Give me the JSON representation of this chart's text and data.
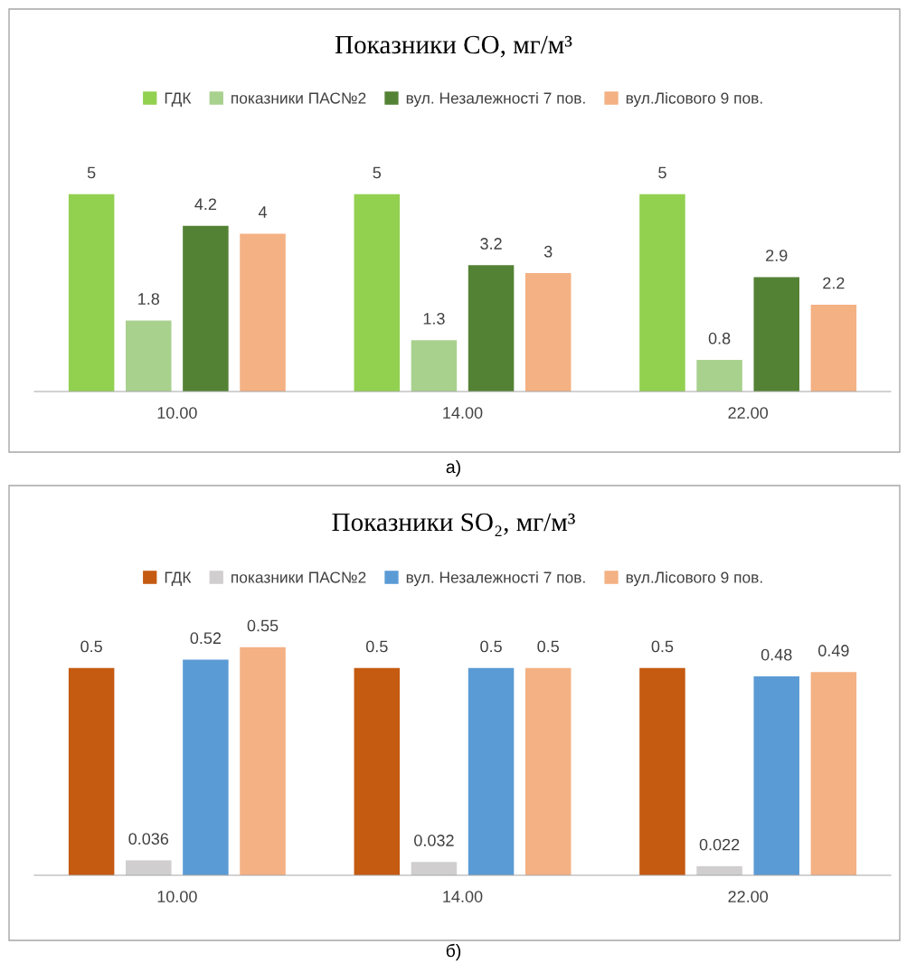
{
  "chart_data": [
    {
      "type": "bar",
      "title": "Показники CO, мг/м³",
      "categories": [
        "10.00",
        "14.00",
        "22.00"
      ],
      "legend": "top",
      "data_labels": true,
      "annotations": [
        "а)"
      ],
      "series": [
        {
          "name": "ГДК",
          "color": "#92d050",
          "values": [
            5,
            5,
            5
          ]
        },
        {
          "name": "показники ПАС№2",
          "color": "#a9d18e",
          "values": [
            1.8,
            1.3,
            0.8
          ]
        },
        {
          "name": "вул. Незалежності 7 пов.",
          "color": "#548235",
          "values": [
            4.2,
            3.2,
            2.9
          ]
        },
        {
          "name": "вул.Лісового 9 пов.",
          "color": "#f4b183",
          "values": [
            4,
            3,
            2.2
          ]
        }
      ]
    },
    {
      "type": "bar",
      "title": "Показники SO₂, мг/м³",
      "categories": [
        "10.00",
        "14.00",
        "22.00"
      ],
      "legend": "top",
      "data_labels": true,
      "annotations": [
        "б)"
      ],
      "series": [
        {
          "name": "ГДК",
          "color": "#c55a11",
          "values": [
            0.5,
            0.5,
            0.5
          ]
        },
        {
          "name": "показники ПАС№2",
          "color": "#d0cece",
          "values": [
            0.036,
            0.032,
            0.022
          ]
        },
        {
          "name": "вул. Незалежності 7 пов.",
          "color": "#5b9bd5",
          "values": [
            0.52,
            0.5,
            0.48
          ]
        },
        {
          "name": "вул.Лісового 9 пов.",
          "color": "#f4b183",
          "values": [
            0.55,
            0.5,
            0.49
          ]
        }
      ]
    }
  ]
}
